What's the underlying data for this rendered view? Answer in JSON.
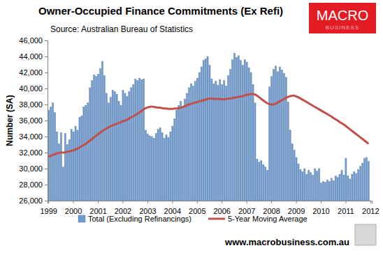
{
  "chart_data": {
    "type": "bar",
    "title": "Owner-Occupied Finance Commitments (Ex Refi)",
    "subtitle": "Source: Australian Bureau of Statistics",
    "y_label": "Number (SA)",
    "annotations": [
      "MACRO",
      "BUSINESS",
      "www.macrobusiness.com.au"
    ],
    "legend": "bottom",
    "grid": false,
    "categories": [
      "1999",
      null,
      null,
      null,
      null,
      null,
      null,
      null,
      null,
      null,
      null,
      null,
      "2000",
      null,
      null,
      null,
      null,
      null,
      null,
      null,
      null,
      null,
      null,
      null,
      "2001",
      null,
      null,
      null,
      null,
      null,
      null,
      null,
      null,
      null,
      null,
      null,
      "2002",
      null,
      null,
      null,
      null,
      null,
      null,
      null,
      null,
      null,
      null,
      null,
      "2003",
      null,
      null,
      null,
      null,
      null,
      null,
      null,
      null,
      null,
      null,
      null,
      "2004",
      null,
      null,
      null,
      null,
      null,
      null,
      null,
      null,
      null,
      null,
      null,
      "2005",
      null,
      null,
      null,
      null,
      null,
      null,
      null,
      null,
      null,
      null,
      null,
      "2006",
      null,
      null,
      null,
      null,
      null,
      null,
      null,
      null,
      null,
      null,
      null,
      "2007",
      null,
      null,
      null,
      null,
      null,
      null,
      null,
      null,
      null,
      null,
      null,
      "2008",
      null,
      null,
      null,
      null,
      null,
      null,
      null,
      null,
      null,
      null,
      null,
      "2009",
      null,
      null,
      null,
      null,
      null,
      null,
      null,
      null,
      null,
      null,
      null,
      "2010",
      null,
      null,
      null,
      null,
      null,
      null,
      null,
      null,
      null,
      null,
      null,
      "2011",
      null,
      null,
      null,
      null,
      null,
      null,
      null,
      null,
      null,
      null,
      null,
      "2012"
    ],
    "series": [
      {
        "name": "Total (Excluding Refinancings)",
        "type": "bar",
        "color": "#6f9bd1",
        "values": [
          37300,
          37700,
          38200,
          37000,
          34600,
          33100,
          34500,
          30200,
          34400,
          33000,
          33600,
          34900,
          34600,
          35300,
          34800,
          36400,
          36600,
          37700,
          37900,
          38200,
          40100,
          41000,
          41700,
          41500,
          41800,
          42500,
          43400,
          41600,
          39400,
          38200,
          38900,
          39800,
          39600,
          39300,
          38400,
          37900,
          39800,
          39400,
          39000,
          39600,
          40100,
          40500,
          41200,
          41000,
          41300,
          41100,
          41200,
          34800,
          34300,
          34100,
          34000,
          33800,
          34400,
          34900,
          35100,
          34500,
          33800,
          34200,
          33900,
          34600,
          35300,
          36200,
          37300,
          37900,
          38400,
          37600,
          38700,
          39400,
          40100,
          40600,
          40300,
          40900,
          41300,
          42000,
          42700,
          43500,
          43700,
          44000,
          42900,
          41200,
          40600,
          40900,
          40400,
          41100,
          40500,
          41000,
          40300,
          41600,
          42400,
          43600,
          44400,
          43900,
          44100,
          43500,
          42900,
          43600,
          43300,
          42600,
          42000,
          40500,
          38200,
          31200,
          30800,
          31000,
          30500,
          30200,
          29800,
          40200,
          41500,
          42400,
          42800,
          42100,
          42700,
          42300,
          41900,
          41400,
          38300,
          34800,
          33100,
          32300,
          31400,
          30600,
          29900,
          29600,
          30000,
          29300,
          29800,
          29500,
          29200,
          30000,
          29700,
          30000,
          28200,
          28400,
          28300,
          28600,
          28400,
          28800,
          28500,
          29100,
          28900,
          29300,
          29800,
          29200,
          31300,
          29100,
          28700,
          29300,
          29600,
          29400,
          29900,
          30300,
          30700,
          31300,
          31400,
          30900,
          null
        ]
      },
      {
        "name": "5-Year Moving Average",
        "type": "line",
        "color": "#c0504d",
        "values": [
          31500,
          31600,
          31700,
          31800,
          31900,
          31950,
          32000,
          32000,
          32050,
          32100,
          32150,
          32200,
          32300,
          32400,
          32500,
          32650,
          32800,
          32950,
          33100,
          33300,
          33500,
          33700,
          33900,
          34100,
          34300,
          34500,
          34700,
          34850,
          35000,
          35150,
          35300,
          35400,
          35500,
          35600,
          35700,
          35800,
          35900,
          36000,
          36100,
          36250,
          36400,
          36550,
          36700,
          36850,
          37000,
          37200,
          37400,
          37550,
          37650,
          37700,
          37750,
          37700,
          37650,
          37600,
          37600,
          37550,
          37500,
          37500,
          37450,
          37450,
          37450,
          37500,
          37500,
          37550,
          37600,
          37700,
          37800,
          37900,
          38000,
          38100,
          38150,
          38250,
          38300,
          38400,
          38450,
          38550,
          38600,
          38700,
          38750,
          38750,
          38700,
          38700,
          38700,
          38700,
          38650,
          38650,
          38700,
          38750,
          38750,
          38800,
          38850,
          38900,
          38950,
          39000,
          39050,
          39150,
          39200,
          39250,
          39300,
          39300,
          39250,
          39100,
          38900,
          38700,
          38500,
          38300,
          38150,
          38050,
          38000,
          38000,
          38100,
          38250,
          38400,
          38550,
          38700,
          38850,
          38950,
          39050,
          39100,
          39100,
          39000,
          38900,
          38750,
          38600,
          38450,
          38300,
          38150,
          38000,
          37850,
          37700,
          37550,
          37400,
          37250,
          37100,
          36950,
          36800,
          36650,
          36500,
          36300,
          36150,
          36000,
          35800,
          35650,
          35500,
          35300,
          35100,
          34900,
          34700,
          34500,
          34300,
          34100,
          33900,
          33700,
          33500,
          33300,
          33100,
          null
        ]
      }
    ],
    "ylim": [
      26000,
      46000
    ],
    "yticks": [
      {
        "value": 26000,
        "label": "26,000"
      },
      {
        "value": 28000,
        "label": "28,000"
      },
      {
        "value": 30000,
        "label": "30,000"
      },
      {
        "value": 32000,
        "label": "32,000"
      },
      {
        "value": 34000,
        "label": "34,000"
      },
      {
        "value": 36000,
        "label": "36,000"
      },
      {
        "value": 38000,
        "label": "38,000"
      },
      {
        "value": 40000,
        "label": "40,000"
      },
      {
        "value": 42000,
        "label": "42,000"
      },
      {
        "value": 44000,
        "label": "44,000"
      },
      {
        "value": 46000,
        "label": "46,000"
      }
    ]
  }
}
